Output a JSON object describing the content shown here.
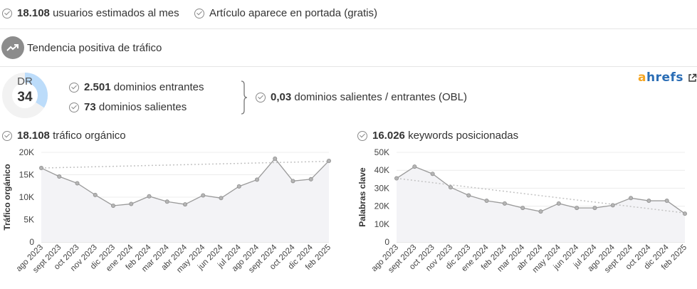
{
  "stats": {
    "users_value": "18.108",
    "users_label": "usuarios estimados al mes",
    "frontpage_label": "Artículo aparece en portada (gratis)",
    "trend_label": "Tendencia positiva de tráfico"
  },
  "dr": {
    "label": "DR",
    "value": "34",
    "score": 34,
    "accent_color": "#bcdcfa",
    "track_color": "#f2f2f2"
  },
  "links": {
    "referring_value": "2.501",
    "referring_label": "dominios entrantes",
    "linked_value": "73",
    "linked_label": "dominios salientes",
    "obl_value": "0,03",
    "obl_label": "dominios salientes / entrantes (OBL)"
  },
  "brand": {
    "a": "a",
    "rest": "hrefs",
    "external_icon": "external-link-icon",
    "color_a": "#f5a623",
    "color_rest": "#2a6db5"
  },
  "chart_headers": {
    "traffic_value": "18.108",
    "traffic_label": "tráfico orgánico",
    "keywords_value": "16.026",
    "keywords_label": "keywords posicionadas"
  },
  "chart_data": [
    {
      "type": "line",
      "ylabel": "Tráfico orgánico",
      "categories": [
        "ago 2023",
        "sept 2023",
        "oct 2023",
        "nov 2023",
        "dic 2023",
        "ene 2024",
        "feb 2024",
        "mar 2024",
        "abr 2024",
        "may 2024",
        "jun 2024",
        "jul 2024",
        "ago 2024",
        "sept 2024",
        "oct 2024",
        "dic 2024",
        "feb 2025"
      ],
      "values": [
        16500,
        14600,
        13100,
        10500,
        8100,
        8500,
        10200,
        9000,
        8400,
        10400,
        9800,
        12400,
        13900,
        18600,
        13600,
        14000,
        18100
      ],
      "trend": [
        16500,
        18000
      ],
      "yticks": [
        0,
        5000,
        10000,
        15000,
        20000
      ],
      "ytick_labels": [
        "0",
        "5K",
        "10K",
        "15K",
        "20K"
      ],
      "ylim": [
        0,
        20000
      ],
      "grid": true
    },
    {
      "type": "line",
      "ylabel": "Palabras clave",
      "categories": [
        "ago 2023",
        "sept 2023",
        "oct 2023",
        "nov 2023",
        "dic 2023",
        "ene 2024",
        "feb 2024",
        "mar 2024",
        "abr 2024",
        "may 2024",
        "jun 2024",
        "jul 2024",
        "ago 2024",
        "sept 2024",
        "oct 2024",
        "dic 2024",
        "feb 2025"
      ],
      "values": [
        35500,
        42000,
        38000,
        30500,
        26000,
        23000,
        21500,
        19000,
        17000,
        21500,
        19000,
        19000,
        20500,
        24500,
        23000,
        23000,
        15800
      ],
      "trend": [
        35500,
        16200
      ],
      "yticks": [
        0,
        10000,
        20000,
        30000,
        40000,
        50000
      ],
      "ytick_labels": [
        "0",
        "10K",
        "20K",
        "30K",
        "40K",
        "50K"
      ],
      "ylim": [
        0,
        50000
      ],
      "grid": true
    }
  ]
}
